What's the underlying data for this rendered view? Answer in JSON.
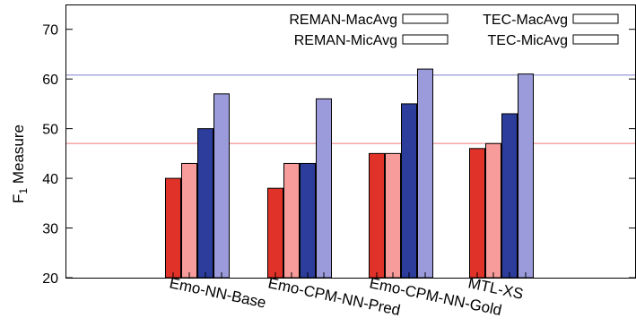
{
  "chart_data": {
    "type": "bar",
    "ylabel_main": "F",
    "ylabel_sub": "1",
    "ylabel_rest": " Measure",
    "ylim": [
      20,
      75
    ],
    "yticks": [
      20,
      30,
      40,
      50,
      60,
      70
    ],
    "categories": [
      "Emo-NN-Base",
      "Emo-CPM-NN-Pred",
      "Emo-CPM-NN-Gold",
      "MTL-XS"
    ],
    "series": [
      {
        "name": "REMAN-MacAvg",
        "color": "#e03228",
        "values": [
          40,
          38,
          45,
          46
        ]
      },
      {
        "name": "REMAN-MicAvg",
        "color": "#f89b9b",
        "values": [
          43,
          43,
          45,
          47
        ]
      },
      {
        "name": "TEC-MacAvg",
        "color": "#2c3d9c",
        "values": [
          50,
          43,
          55,
          53
        ]
      },
      {
        "name": "TEC-MicAvg",
        "color": "#9b9bdc",
        "values": [
          57,
          56,
          62,
          61
        ]
      }
    ],
    "reference_lines": [
      {
        "value": 47,
        "color": "#f4a6a6"
      },
      {
        "value": 60.8,
        "color": "#a9a9e0"
      }
    ],
    "legend_position": "top-right",
    "grid": false
  }
}
